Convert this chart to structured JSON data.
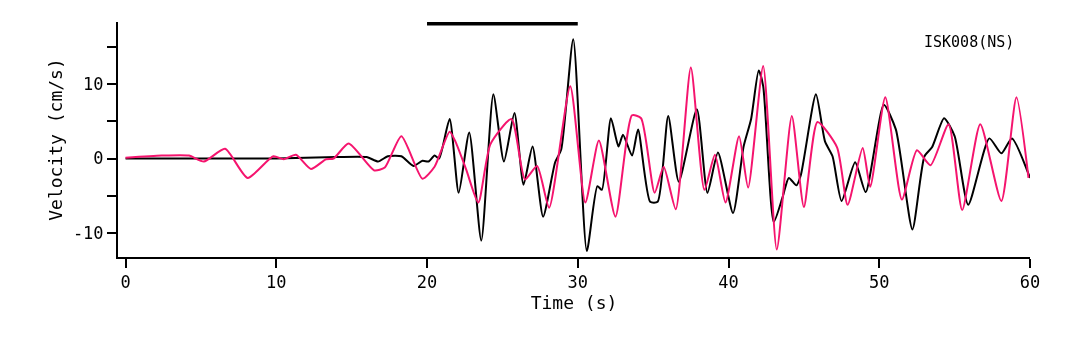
{
  "chart_data": {
    "type": "line",
    "xlabel": "Time (s)",
    "ylabel": "Velocity (cm/s)",
    "annotations": [
      "ISK008(NS)"
    ],
    "xlim": [
      -0.5,
      60
    ],
    "xticks": [
      0,
      10,
      20,
      30,
      40,
      50,
      60
    ],
    "ylim": [
      -13.2,
      18.3
    ],
    "yticks": [
      {
        "value": -5,
        "label": null
      },
      -10,
      0,
      {
        "value": 5,
        "label": null
      },
      10,
      {
        "value": 15,
        "label": null
      }
    ],
    "marker": "none",
    "line_style": "solid",
    "series": [
      {
        "color": "#000000",
        "x": [
          20,
          30
        ],
        "values": [
          18.1,
          18.1
        ]
      },
      {
        "color": "#000000",
        "x": [
          0,
          5,
          10,
          14,
          16,
          16.75,
          17.4,
          18.3,
          19.1,
          19.7,
          20.1,
          20.5,
          20.8,
          21.5,
          22.1,
          22.8,
          23.6,
          24.4,
          25.1,
          25.8,
          26.4,
          27.0,
          27.7,
          28.5,
          28.9,
          29.7,
          30.6,
          31.3,
          31.6,
          32.2,
          32.7,
          33.0,
          33.6,
          34.0,
          34.8,
          35.3,
          36.0,
          36.7,
          37.9,
          38.6,
          39.3,
          40.3,
          41.0,
          41.5,
          42.0,
          42.3,
          43.0,
          43.6,
          44.0,
          44.5,
          44.8,
          45.8,
          46.4,
          46.9,
          47.5,
          48.4,
          49.1,
          50.3,
          51.1,
          52.2,
          53.0,
          53.5,
          54.3,
          55.0,
          55.9,
          57.3,
          58.1,
          58.8,
          60
        ],
        "values": [
          0,
          0,
          0,
          0.2,
          0.2,
          -0.4,
          0.3,
          0.3,
          -1.0,
          -0.3,
          -0.4,
          0.4,
          0,
          5.3,
          -4.6,
          3.5,
          -11,
          8.6,
          -0.4,
          6.1,
          -3.5,
          1.6,
          -7.8,
          -0.5,
          1.2,
          16,
          -12.4,
          -3.7,
          -4.2,
          5.4,
          1.6,
          3.2,
          0.4,
          3.9,
          -5.8,
          -5.8,
          5.7,
          -3.1,
          6.6,
          -4.6,
          0.8,
          -7.3,
          1.6,
          5.3,
          11.8,
          9.7,
          -8.5,
          -5.1,
          -2.6,
          -3.6,
          -2.2,
          8.6,
          2.3,
          0.3,
          -5.7,
          -0.5,
          -4.5,
          7.2,
          3.9,
          -9.5,
          0.3,
          1.5,
          5.4,
          3.0,
          -6.2,
          2.7,
          0.7,
          2.7,
          -2.6
        ]
      },
      {
        "color": "#f5146e",
        "x": [
          0,
          2.4,
          4.2,
          5.2,
          6.6,
          8.1,
          9.8,
          10.5,
          11.3,
          12.3,
          13.3,
          13.8,
          14.8,
          16.5,
          17.2,
          18.3,
          19.7,
          20.5,
          21.5,
          21.9,
          22.6,
          23.4,
          24.2,
          25.6,
          26.5,
          27.3,
          28.1,
          29.5,
          30.5,
          31.4,
          32.5,
          33.6,
          34.2,
          35.1,
          35.7,
          36.5,
          37.5,
          38.4,
          39.1,
          39.8,
          40.7,
          41.3,
          42.3,
          43.2,
          44.2,
          45.0,
          45.9,
          47.2,
          47.9,
          48.9,
          49.4,
          50.4,
          51.5,
          52.5,
          53.4,
          54.6,
          55.5,
          56.7,
          58.1,
          59.1,
          59.9
        ],
        "values": [
          0.1,
          0.4,
          0.4,
          -0.4,
          1.3,
          -2.6,
          0.3,
          -0.1,
          0.5,
          -1.4,
          -0.1,
          0,
          2.0,
          -1.6,
          -1.2,
          3.0,
          -2.7,
          -1.1,
          3.6,
          2.2,
          -1.5,
          -5.9,
          1.9,
          5.3,
          -2.8,
          -1.0,
          -6.6,
          9.7,
          -5.9,
          2.4,
          -7.8,
          5.8,
          5.4,
          -4.6,
          -1.1,
          -6.8,
          12.2,
          -4.2,
          0.5,
          -5.9,
          3.0,
          -3.9,
          12.4,
          -12.2,
          5.7,
          -6.5,
          4.9,
          1.5,
          -6.2,
          1.4,
          -3.8,
          8.2,
          -5.5,
          1.1,
          -0.9,
          4.6,
          -6.9,
          4.6,
          -5.7,
          8.2,
          -2.6
        ]
      }
    ]
  }
}
